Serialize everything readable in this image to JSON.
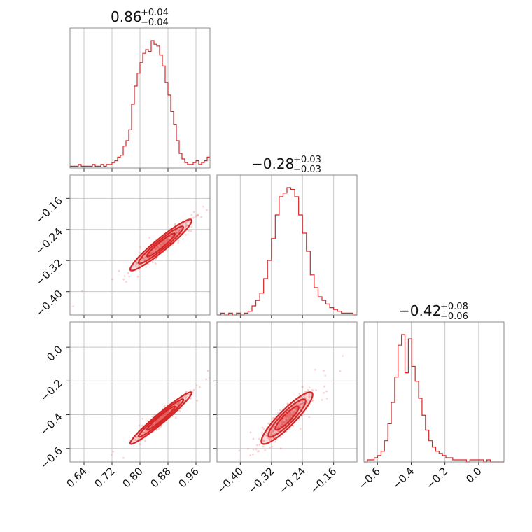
{
  "colors": {
    "series": "#d62728",
    "scatter": "#f08080",
    "grid": "#c8c8c8",
    "frame": "#8c8c8c"
  },
  "titles": {
    "p0": {
      "value": "0.86",
      "plus": "+0.04",
      "minus": "−0.04"
    },
    "p1": {
      "value": "−0.28",
      "plus": "+0.03",
      "minus": "−0.03"
    },
    "p2": {
      "value": "−0.42",
      "plus": "+0.08",
      "minus": "−0.06"
    }
  },
  "chart_data": {
    "type": "corner",
    "parameters": [
      {
        "range": [
          0.6,
          1.0
        ],
        "ticks": [
          0.64,
          0.72,
          0.8,
          0.88,
          0.96
        ],
        "tick_labels": [
          "0.64",
          "0.72",
          "0.80",
          "0.88",
          "0.96"
        ]
      },
      {
        "range": [
          -0.46,
          -0.1
        ],
        "ticks": [
          -0.4,
          -0.32,
          -0.24,
          -0.16
        ],
        "tick_labels": [
          "−0.40",
          "−0.32",
          "−0.24",
          "−0.16"
        ]
      },
      {
        "range": [
          -0.68,
          0.15
        ],
        "ticks": [
          -0.6,
          -0.4,
          -0.2,
          0.0
        ],
        "tick_labels": [
          "−0.6",
          "−0.4",
          "−0.2",
          "0.0"
        ]
      }
    ],
    "histograms": [
      {
        "bins": [
          0.6,
          1.0
        ],
        "counts": [
          1,
          1,
          1,
          2,
          1,
          1,
          1,
          1,
          2,
          1,
          1,
          2,
          1,
          2,
          2,
          3,
          4,
          6,
          7,
          12,
          15,
          21,
          35,
          45,
          52,
          58,
          63,
          65,
          64,
          70,
          68,
          67,
          62,
          56,
          47,
          40,
          31,
          24,
          15,
          8,
          5,
          3,
          2,
          2,
          3,
          4,
          2,
          3,
          4,
          6
        ]
      },
      {
        "bins": [
          -0.46,
          -0.1
        ],
        "counts": [
          0,
          1,
          0,
          1,
          0,
          1,
          0,
          1,
          2,
          5,
          8,
          12,
          20,
          30,
          42,
          55,
          65,
          67,
          70,
          69,
          65,
          55,
          45,
          35,
          22,
          15,
          10,
          8,
          6,
          4,
          3,
          2,
          1,
          1,
          1,
          0
        ]
      },
      {
        "bins": [
          -0.68,
          0.15
        ],
        "counts": [
          0,
          1,
          1,
          2,
          3,
          5,
          10,
          18,
          28,
          40,
          55,
          60,
          42,
          58,
          45,
          38,
          30,
          22,
          15,
          10,
          7,
          5,
          4,
          3,
          2,
          2,
          1,
          1,
          1,
          1,
          0,
          1,
          1,
          1,
          1,
          0,
          1,
          0,
          0,
          0,
          0
        ]
      }
    ],
    "pairs": [
      {
        "x": 0,
        "y": 1,
        "mean": [
          0.86,
          -0.28
        ],
        "sd": [
          0.04,
          0.03
        ],
        "corr": 0.95
      },
      {
        "x": 0,
        "y": 2,
        "mean": [
          0.86,
          -0.42
        ],
        "sd": [
          0.04,
          0.07
        ],
        "corr": 0.97
      },
      {
        "x": 1,
        "y": 2,
        "mean": [
          -0.28,
          -0.42
        ],
        "sd": [
          0.03,
          0.07
        ],
        "corr": 0.9
      }
    ]
  }
}
